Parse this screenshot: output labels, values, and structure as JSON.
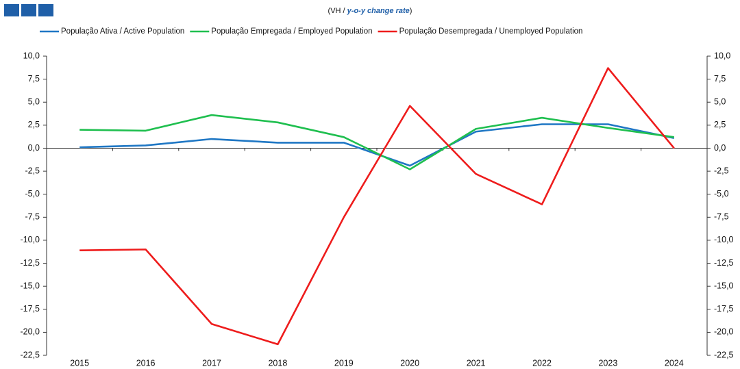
{
  "chart_data": {
    "type": "line",
    "subtitle": {
      "prefix": "(VH / ",
      "emphasis": "y-o-y change rate",
      "suffix": ")"
    },
    "categories": [
      "2015",
      "2016",
      "2017",
      "2018",
      "2019",
      "2020",
      "2021",
      "2022",
      "2023",
      "2024"
    ],
    "series": [
      {
        "name": "População Ativa / Active Population",
        "color": "#1f77c4",
        "values": [
          0.1,
          0.3,
          1.0,
          0.6,
          0.6,
          -1.9,
          1.8,
          2.6,
          2.6,
          1.1
        ]
      },
      {
        "name": "População Empregada /  Employed Population",
        "color": "#1fbf4f",
        "values": [
          2.0,
          1.9,
          3.6,
          2.8,
          1.2,
          -2.3,
          2.1,
          3.3,
          2.2,
          1.2
        ]
      },
      {
        "name": "População Desempregada / Unemployed Population",
        "color": "#ee1c1c",
        "values": [
          -11.1,
          -11.0,
          -19.1,
          -21.3,
          -7.5,
          4.6,
          -2.8,
          -6.1,
          8.7,
          0.0
        ]
      }
    ],
    "ylim": [
      -22.5,
      10
    ],
    "yticks": [
      {
        "value": 10,
        "label": "10,0"
      },
      {
        "value": 7.5,
        "label": "7,5"
      },
      {
        "value": 5,
        "label": "5,0"
      },
      {
        "value": 2.5,
        "label": "2,5"
      },
      {
        "value": 0,
        "label": "0,0"
      },
      {
        "value": -2.5,
        "label": "-2,5"
      },
      {
        "value": -5,
        "label": "-5,0"
      },
      {
        "value": -7.5,
        "label": "-7,5"
      },
      {
        "value": -10,
        "label": "-10,0"
      },
      {
        "value": -12.5,
        "label": "-12,5"
      },
      {
        "value": -15,
        "label": "-15,0"
      },
      {
        "value": -17.5,
        "label": "-17,5"
      },
      {
        "value": -20,
        "label": "-20,0"
      },
      {
        "value": -22.5,
        "label": "-22,5"
      }
    ],
    "y2lim": [
      -22.5,
      10
    ],
    "y2ticks": [
      {
        "value": 10,
        "label": "10,0"
      },
      {
        "value": 7.5,
        "label": "7,5"
      },
      {
        "value": 5,
        "label": "5,0"
      },
      {
        "value": 2.5,
        "label": "2,5"
      },
      {
        "value": 0,
        "label": "0,0"
      },
      {
        "value": -2.5,
        "label": "-2,5"
      },
      {
        "value": -5,
        "label": "-5,0"
      },
      {
        "value": -7.5,
        "label": "-7,5"
      },
      {
        "value": -10,
        "label": "-10,0"
      },
      {
        "value": -12.5,
        "label": "-12,5"
      },
      {
        "value": -15,
        "label": "-15,0"
      },
      {
        "value": -17.5,
        "label": "-17,5"
      },
      {
        "value": -20,
        "label": "-20,0"
      },
      {
        "value": -22.5,
        "label": "-22,5"
      }
    ],
    "grid": false
  }
}
